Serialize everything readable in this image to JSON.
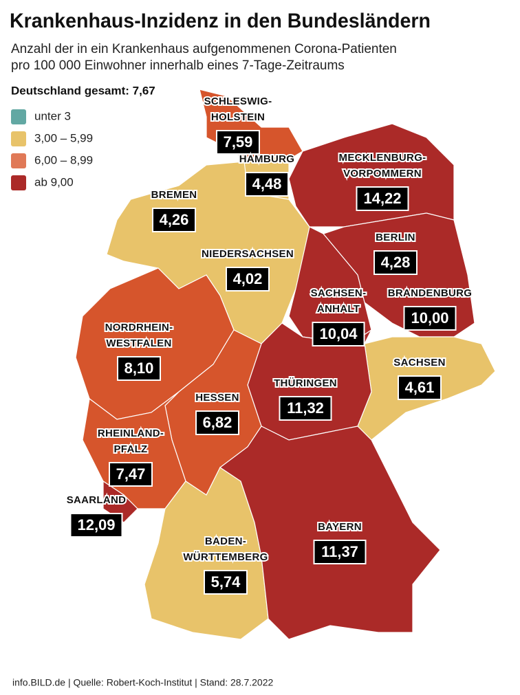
{
  "header": {
    "title": "Krankenhaus-Inzidenz in den Bundesländern",
    "subtitle_lines": [
      "Anzahl der in ein Krankenhaus aufgenommenen Corona-Patienten",
      "pro 100 000 Einwohner innerhalb eines 7-Tage-Zeitraums"
    ]
  },
  "total": "Deutschland gesamt: 7,67",
  "legend": [
    {
      "label": "unter 3",
      "color": "#62a8a3"
    },
    {
      "label": "3,00 – 5,99",
      "color": "#e8c36a"
    },
    {
      "label": "6,00 – 8,99",
      "color": "#e07957"
    },
    {
      "label": "ab 9,00",
      "color": "#ab2a28"
    }
  ],
  "regions": [
    {
      "name_lines": [
        "SCHLESWIG-",
        "HOLSTEIN"
      ],
      "value": 7.59,
      "value_label": "7,59",
      "color": "#d6552c"
    },
    {
      "name_lines": [
        "HAMBURG"
      ],
      "value": 4.48,
      "value_label": "4,48",
      "color": "#e8c36a"
    },
    {
      "name_lines": [
        "MECKLENBURG-",
        "VORPOMMERN"
      ],
      "value": 14.22,
      "value_label": "14,22",
      "color": "#ab2a28"
    },
    {
      "name_lines": [
        "BREMEN"
      ],
      "value": 4.26,
      "value_label": "4,26",
      "color": "#e8c36a"
    },
    {
      "name_lines": [
        "NIEDERSACHSEN"
      ],
      "value": 4.02,
      "value_label": "4,02",
      "color": "#e8c36a"
    },
    {
      "name_lines": [
        "BERLIN"
      ],
      "value": 4.28,
      "value_label": "4,28",
      "color": "#e8c36a"
    },
    {
      "name_lines": [
        "BRANDENBURG"
      ],
      "value": 10.0,
      "value_label": "10,00",
      "color": "#ab2a28"
    },
    {
      "name_lines": [
        "SACHSEN-",
        "ANHALT"
      ],
      "value": 10.04,
      "value_label": "10,04",
      "color": "#ab2a28"
    },
    {
      "name_lines": [
        "NORDRHEIN-",
        "WESTFALEN"
      ],
      "value": 8.1,
      "value_label": "8,10",
      "color": "#d6552c"
    },
    {
      "name_lines": [
        "SACHSEN"
      ],
      "value": 4.61,
      "value_label": "4,61",
      "color": "#e8c36a"
    },
    {
      "name_lines": [
        "THÜRINGEN"
      ],
      "value": 11.32,
      "value_label": "11,32",
      "color": "#ab2a28"
    },
    {
      "name_lines": [
        "HESSEN"
      ],
      "value": 6.82,
      "value_label": "6,82",
      "color": "#d6552c"
    },
    {
      "name_lines": [
        "RHEINLAND-",
        "PFALZ"
      ],
      "value": 7.47,
      "value_label": "7,47",
      "color": "#d6552c"
    },
    {
      "name_lines": [
        "SAARLAND"
      ],
      "value": 12.09,
      "value_label": "12,09",
      "color": "#ab2a28"
    },
    {
      "name_lines": [
        "BADEN-",
        "WÜRTTEMBERG"
      ],
      "value": 5.74,
      "value_label": "5,74",
      "color": "#e8c36a"
    },
    {
      "name_lines": [
        "BAYERN"
      ],
      "value": 11.37,
      "value_label": "11,37",
      "color": "#ab2a28"
    }
  ],
  "footer": "info.BILD.de | Quelle: Robert-Koch-Institut | Stand: 28.7.2022"
}
